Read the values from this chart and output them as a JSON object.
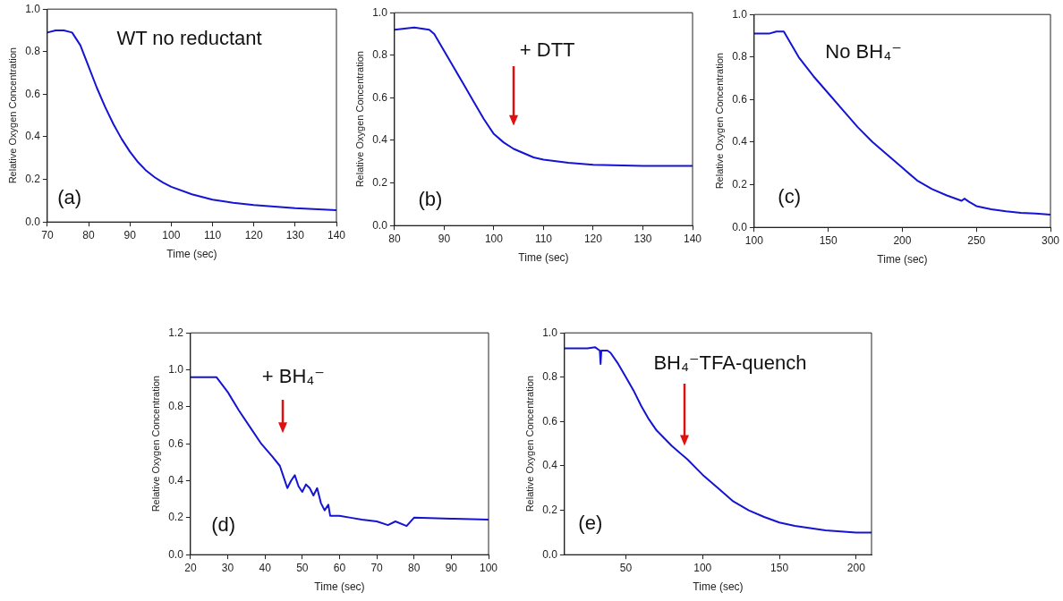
{
  "chart_data": [
    {
      "type": "line",
      "xlabel": "Time (sec)",
      "ylabel": "Relative Oxygen Concentration",
      "color": "#1414d2",
      "x": [
        70,
        72,
        74,
        76,
        78,
        80,
        82,
        84,
        86,
        88,
        90,
        92,
        94,
        96,
        98,
        100,
        105,
        110,
        115,
        120,
        130,
        140
      ],
      "values": [
        0.89,
        0.9,
        0.9,
        0.89,
        0.83,
        0.73,
        0.63,
        0.54,
        0.46,
        0.39,
        0.33,
        0.28,
        0.24,
        0.21,
        0.185,
        0.165,
        0.13,
        0.105,
        0.09,
        0.08,
        0.065,
        0.055
      ],
      "xlim": [
        70,
        140
      ],
      "xticks": [
        70,
        80,
        90,
        100,
        110,
        120,
        130,
        140
      ],
      "ylim": [
        0,
        1
      ],
      "yticks": [
        {
          "value": 0,
          "label": "0.0"
        },
        {
          "value": 0.2,
          "label": "0.2"
        },
        {
          "value": 0.4,
          "label": "0.4"
        },
        {
          "value": 0.6,
          "label": "0.6"
        },
        {
          "value": 0.8,
          "label": "0.8"
        },
        {
          "value": 1,
          "label": "1.0"
        }
      ],
      "annotations": [
        "WT no reductant",
        "(a)"
      ]
    },
    {
      "type": "line",
      "xlabel": "Time (sec)",
      "ylabel": "Relative Oxygen Concentration",
      "color": "#1414d2",
      "x": [
        80,
        84,
        87,
        88,
        90,
        92,
        94,
        96,
        98,
        100,
        102,
        104,
        106,
        108,
        110,
        115,
        120,
        130,
        140
      ],
      "values": [
        0.92,
        0.93,
        0.92,
        0.9,
        0.82,
        0.74,
        0.66,
        0.58,
        0.5,
        0.43,
        0.39,
        0.36,
        0.34,
        0.32,
        0.31,
        0.295,
        0.285,
        0.28,
        0.28
      ],
      "xlim": [
        80,
        140
      ],
      "xticks": [
        80,
        90,
        100,
        110,
        120,
        130,
        140
      ],
      "ylim": [
        0,
        1
      ],
      "yticks": [
        {
          "value": 0,
          "label": "0.0"
        },
        {
          "value": 0.2,
          "label": "0.2"
        },
        {
          "value": 0.4,
          "label": "0.4"
        },
        {
          "value": 0.6,
          "label": "0.6"
        },
        {
          "value": 0.8,
          "label": "0.8"
        },
        {
          "value": 1,
          "label": "1.0"
        }
      ],
      "annotations": [
        "+ DTT",
        "(b)"
      ]
    },
    {
      "type": "line",
      "xlabel": "Time (sec)",
      "ylabel": "Relative Oxygen Concentration",
      "color": "#1414d2",
      "x": [
        100,
        110,
        115,
        120,
        125,
        130,
        140,
        150,
        160,
        170,
        180,
        190,
        200,
        210,
        220,
        230,
        240,
        242,
        245,
        250,
        260,
        270,
        280,
        290,
        300
      ],
      "values": [
        0.91,
        0.91,
        0.92,
        0.92,
        0.86,
        0.8,
        0.71,
        0.63,
        0.55,
        0.47,
        0.4,
        0.34,
        0.28,
        0.22,
        0.18,
        0.15,
        0.125,
        0.135,
        0.12,
        0.1,
        0.085,
        0.075,
        0.068,
        0.065,
        0.06
      ],
      "xlim": [
        100,
        300
      ],
      "xticks": [
        100,
        150,
        200,
        250,
        300
      ],
      "ylim": [
        0,
        1
      ],
      "yticks": [
        {
          "value": 0,
          "label": "0.0"
        },
        {
          "value": 0.2,
          "label": "0.2"
        },
        {
          "value": 0.4,
          "label": "0.4"
        },
        {
          "value": 0.6,
          "label": "0.6"
        },
        {
          "value": 0.8,
          "label": "0.8"
        },
        {
          "value": 1,
          "label": "1.0"
        }
      ],
      "annotations": [
        "No BH₄⁻",
        "(c)"
      ]
    },
    {
      "type": "line",
      "xlabel": "Time (sec)",
      "ylabel": "Relative Oxygen Concentration",
      "color": "#1414d2",
      "x": [
        20,
        27,
        30,
        33,
        36,
        39,
        42,
        44,
        45,
        46,
        47,
        48,
        49,
        50,
        51,
        52,
        53,
        54,
        55,
        56,
        57,
        57.5,
        60,
        63,
        66,
        70,
        73,
        75,
        78,
        80,
        90,
        100
      ],
      "values": [
        0.96,
        0.96,
        0.88,
        0.78,
        0.69,
        0.6,
        0.53,
        0.48,
        0.42,
        0.36,
        0.4,
        0.43,
        0.37,
        0.34,
        0.38,
        0.36,
        0.32,
        0.36,
        0.28,
        0.24,
        0.27,
        0.21,
        0.21,
        0.2,
        0.19,
        0.18,
        0.16,
        0.18,
        0.155,
        0.2,
        0.195,
        0.19
      ],
      "xlim": [
        20,
        100
      ],
      "xticks": [
        20,
        30,
        40,
        50,
        60,
        70,
        80,
        90,
        100
      ],
      "ylim": [
        0,
        1.2
      ],
      "yticks": [
        {
          "value": 0,
          "label": "0.0"
        },
        {
          "value": 0.2,
          "label": "0.2"
        },
        {
          "value": 0.4,
          "label": "0.4"
        },
        {
          "value": 0.6,
          "label": "0.6"
        },
        {
          "value": 0.8,
          "label": "0.8"
        },
        {
          "value": 1,
          "label": "1.0"
        },
        {
          "value": 1.2,
          "label": "1.2"
        }
      ],
      "annotations": [
        "+ BH₄⁻",
        "(d)"
      ]
    },
    {
      "type": "line",
      "xlabel": "Time (sec)",
      "ylabel": "Relative Oxygen Concentration",
      "color": "#1414d2",
      "x": [
        10,
        25,
        30,
        33,
        33.5,
        34,
        38,
        40,
        45,
        50,
        55,
        60,
        65,
        70,
        80,
        90,
        100,
        110,
        120,
        130,
        140,
        150,
        160,
        170,
        180,
        190,
        200,
        210
      ],
      "values": [
        0.93,
        0.93,
        0.935,
        0.92,
        0.86,
        0.92,
        0.92,
        0.91,
        0.86,
        0.8,
        0.74,
        0.67,
        0.61,
        0.56,
        0.49,
        0.43,
        0.36,
        0.3,
        0.24,
        0.2,
        0.17,
        0.145,
        0.13,
        0.12,
        0.11,
        0.105,
        0.1,
        0.1
      ],
      "xlim": [
        10,
        210
      ],
      "xticks": [
        50,
        100,
        150,
        200
      ],
      "ylim": [
        0,
        1
      ],
      "yticks": [
        {
          "value": 0,
          "label": "0.0"
        },
        {
          "value": 0.2,
          "label": "0.2"
        },
        {
          "value": 0.4,
          "label": "0.4"
        },
        {
          "value": 0.6,
          "label": "0.6"
        },
        {
          "value": 0.8,
          "label": "0.8"
        },
        {
          "value": 1,
          "label": "1.0"
        }
      ],
      "annotations": [
        "BH₄⁻TFA-quench",
        "(e)"
      ]
    }
  ]
}
